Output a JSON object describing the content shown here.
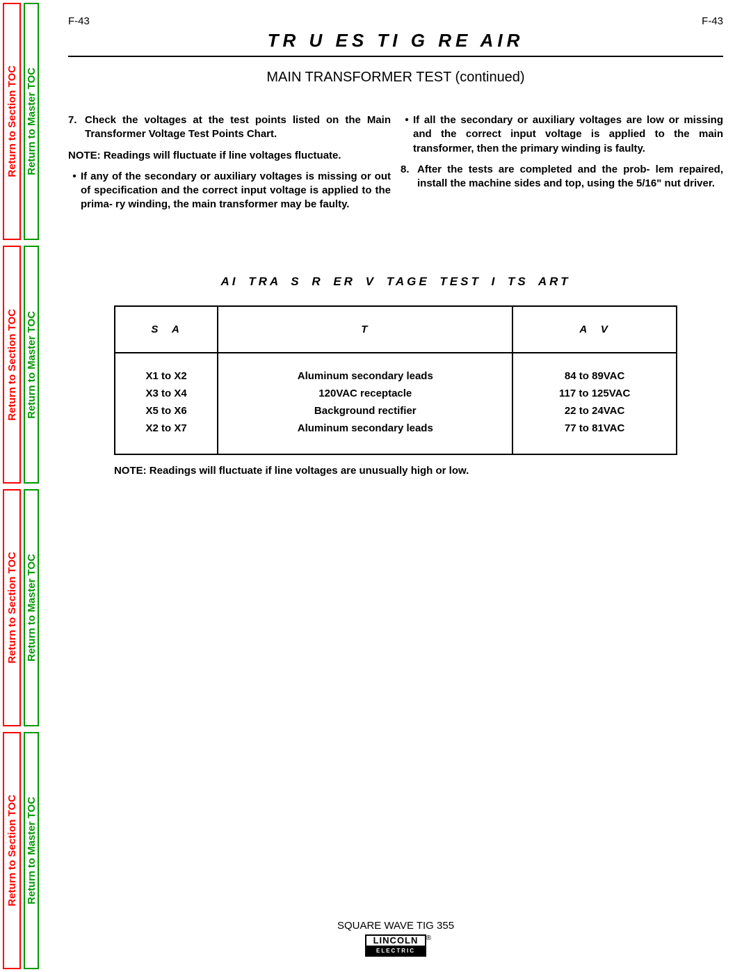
{
  "rail": {
    "section_label": "Return to Section TOC",
    "master_label": "Return to Master TOC",
    "section_color": "#ff0000",
    "master_color": "#009900",
    "repeats": 4
  },
  "header": {
    "page_left": "F-43",
    "page_right": "F-43",
    "section_title": "TR U ES   TI G  RE AIR",
    "subtitle": "MAIN TRANSFORMER TEST   (continued)"
  },
  "body": {
    "left": {
      "item7_num": "7.",
      "item7": "Check the voltages at the test points listed on the Main Transformer Voltage Test Points Chart.",
      "note": "NOTE: Readings will fluctuate if line voltages fluctuate.",
      "bullet1": "If any of the secondary or auxiliary voltages is missing or out of specification and the correct input voltage is applied to the prima- ry winding, the main transformer may be faulty."
    },
    "right": {
      "bullet1": "If all the secondary or auxiliary voltages are low or missing and the correct input voltage is applied to the main transformer, then the primary winding is faulty.",
      "item8_num": "8.",
      "item8": "After the tests are completed and the prob- lem repaired, install the machine sides and top, using the 5/16\" nut driver."
    }
  },
  "chart": {
    "title": "AI  TRA S   R  ER V  TAGE TEST   I TS   ART",
    "headers": [
      "S         A",
      "T",
      "A        V"
    ],
    "rows": [
      [
        "X1 to X2",
        "Aluminum secondary leads",
        "84 to 89VAC"
      ],
      [
        "X3 to X4",
        "120VAC receptacle",
        "117 to 125VAC"
      ],
      [
        "X5 to X6",
        "Background rectifier",
        "22 to 24VAC"
      ],
      [
        "X2 to X7",
        "Aluminum secondary leads",
        "77 to 81VAC"
      ]
    ],
    "note": "NOTE: Readings will fluctuate if line voltages are unusually high or low."
  },
  "footer": {
    "product": "SQUARE WAVE TIG 355",
    "logo_top": "LINCOLN",
    "logo_bot": "ELECTRIC"
  }
}
